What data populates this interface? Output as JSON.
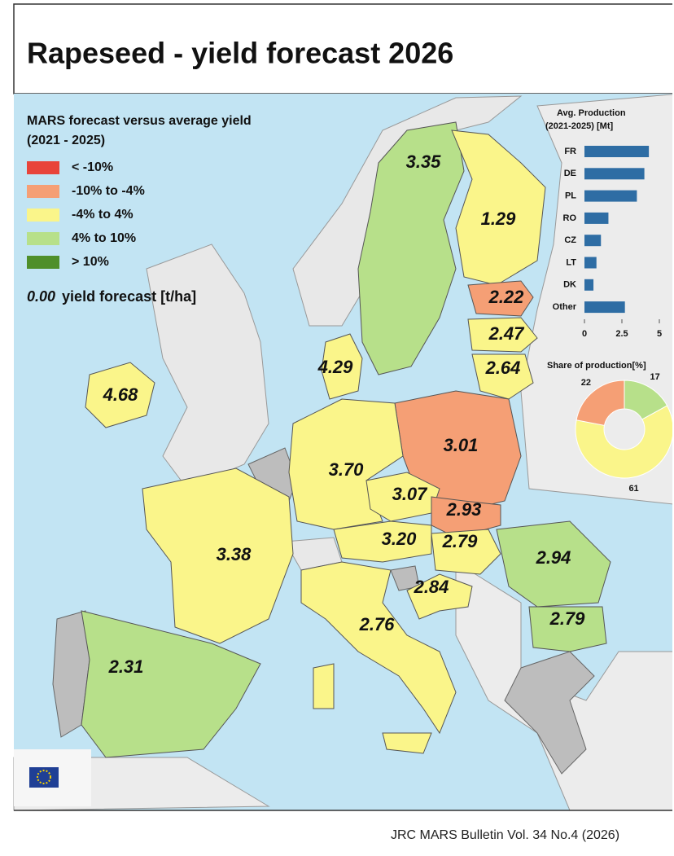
{
  "title": "Rapeseed - yield forecast 2026",
  "legend": {
    "title": [
      "MARS forecast versus average yield",
      "(2021 - 2025)"
    ],
    "items": [
      {
        "label": "< -10%",
        "color": "#e8443a"
      },
      {
        "label": "-10% to -4%",
        "color": "#f59f75"
      },
      {
        "label": "-4% to 4%",
        "color": "#faf58a"
      },
      {
        "label": "4% to 10%",
        "color": "#b7e08a"
      },
      {
        "label": "> 10%",
        "color": "#4f8f2a"
      }
    ],
    "note_sample": "0.00",
    "note_text": "yield forecast [t/ha]"
  },
  "regions": [
    {
      "label": "3.35",
      "color": "#b7e08a"
    },
    {
      "label": "1.29",
      "color": "#faf58a"
    },
    {
      "label": "2.22",
      "color": "#f59f75"
    },
    {
      "label": "2.47",
      "color": "#faf58a"
    },
    {
      "label": "4.29",
      "color": "#faf58a"
    },
    {
      "label": "2.64",
      "color": "#faf58a"
    },
    {
      "label": "4.68",
      "color": "#faf58a"
    },
    {
      "label": "3.01",
      "color": "#f59f75"
    },
    {
      "label": "3.70",
      "color": "#faf58a"
    },
    {
      "label": "3.07",
      "color": "#faf58a"
    },
    {
      "label": "2.93",
      "color": "#f59f75"
    },
    {
      "label": "3.20",
      "color": "#faf58a"
    },
    {
      "label": "2.79",
      "color": "#faf58a"
    },
    {
      "label": "3.38",
      "color": "#faf58a"
    },
    {
      "label": "2.94",
      "color": "#b7e08a"
    },
    {
      "label": "2.84",
      "color": "#faf58a"
    },
    {
      "label": "2.76",
      "color": "#faf58a"
    },
    {
      "label": "2.79",
      "color": "#b7e08a"
    },
    {
      "label": "2.31",
      "color": "#b7e08a"
    }
  ],
  "chart_data": [
    {
      "type": "bar",
      "orientation": "horizontal",
      "title": [
        "Avg. Production",
        "(2021-2025) [Mt]"
      ],
      "categories": [
        "FR",
        "DE",
        "PL",
        "RO",
        "CZ",
        "LT",
        "DK",
        "Other"
      ],
      "values": [
        4.3,
        4.0,
        3.5,
        1.6,
        1.1,
        0.8,
        0.6,
        2.7
      ],
      "color": "#2e6da4",
      "xlim": [
        0,
        5
      ],
      "xticks": [
        0,
        2.5,
        5
      ]
    },
    {
      "type": "donut",
      "title": "Share of production[%]",
      "values": [
        17,
        61,
        22
      ],
      "colors": [
        "#b7e08a",
        "#faf58a",
        "#f59f75"
      ]
    }
  ],
  "footer": "JRC MARS Bulletin Vol. 34 No.4 (2026)"
}
